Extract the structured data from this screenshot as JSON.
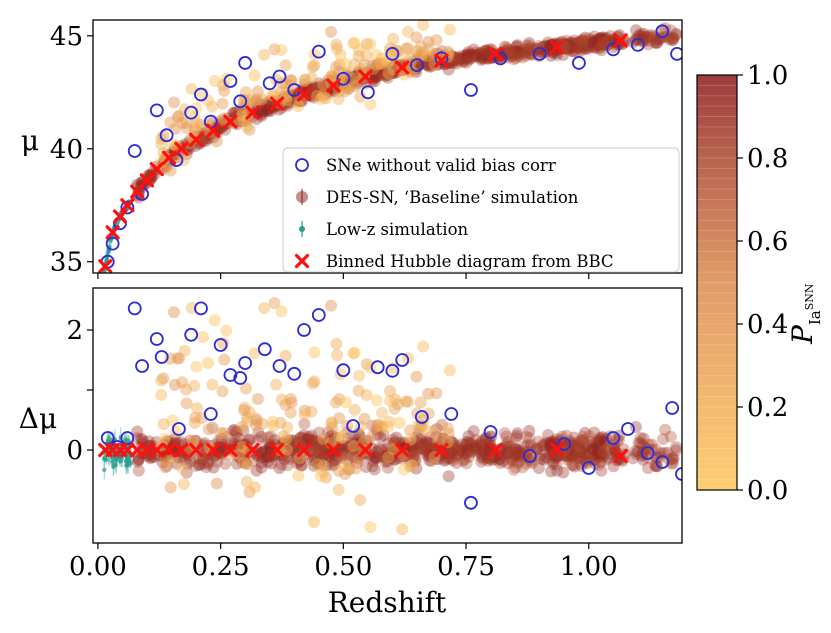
{
  "chart_data": [
    {
      "id": "top",
      "type": "scatter",
      "ylabel": "μ",
      "ylim": [
        34.5,
        45.7
      ],
      "xlim": [
        -0.01,
        1.19
      ],
      "yticks": [
        35,
        40,
        45
      ],
      "legend_position": "lower-right",
      "legend": [
        {
          "key": "no_bias",
          "label": "SNe without valid bias corr"
        },
        {
          "key": "des",
          "label": "DES-SN, ‘Baseline’ simulation"
        },
        {
          "key": "lowz",
          "label": "Low-z simulation"
        },
        {
          "key": "binned",
          "label": "Binned Hubble diagram from BBC"
        }
      ],
      "series": [
        {
          "name": "Binned Hubble diagram from BBC",
          "x": [
            0.015,
            0.03,
            0.045,
            0.06,
            0.08,
            0.1,
            0.12,
            0.145,
            0.17,
            0.2,
            0.235,
            0.27,
            0.315,
            0.365,
            0.42,
            0.48,
            0.545,
            0.62,
            0.7,
            0.81,
            0.935,
            1.065
          ],
          "y": [
            34.8,
            36.3,
            37.0,
            37.5,
            38.1,
            38.6,
            39.1,
            39.6,
            40.0,
            40.4,
            40.8,
            41.2,
            41.6,
            42.0,
            42.4,
            42.8,
            43.2,
            43.6,
            43.9,
            44.2,
            44.5,
            44.8
          ]
        },
        {
          "name": "SNe without valid bias corr",
          "x": [
            0.02,
            0.03,
            0.045,
            0.06,
            0.075,
            0.09,
            0.12,
            0.14,
            0.16,
            0.19,
            0.21,
            0.23,
            0.27,
            0.29,
            0.3,
            0.35,
            0.37,
            0.4,
            0.45,
            0.5,
            0.55,
            0.6,
            0.65,
            0.7,
            0.76,
            0.82,
            0.9,
            0.98,
            1.05,
            1.1,
            1.15,
            1.18
          ],
          "y": [
            35.0,
            35.8,
            36.7,
            37.4,
            39.9,
            38.0,
            41.7,
            40.6,
            39.5,
            41.6,
            42.4,
            41.2,
            43.0,
            42.1,
            43.8,
            42.9,
            43.2,
            42.6,
            44.3,
            43.1,
            42.5,
            44.2,
            43.7,
            44.0,
            42.6,
            44.0,
            44.2,
            43.8,
            44.4,
            44.6,
            45.2,
            44.2
          ]
        }
      ]
    },
    {
      "id": "bottom",
      "type": "scatter",
      "xlabel": "Redshift",
      "ylabel": "Δμ",
      "ylim": [
        -1.55,
        2.7
      ],
      "xlim": [
        -0.01,
        1.19
      ],
      "xticks": [
        0.0,
        0.25,
        0.5,
        0.75,
        1.0
      ],
      "xtick_labels": [
        "0.00",
        "0.25",
        "0.50",
        "0.75",
        "1.00"
      ],
      "yticks": [
        0,
        1,
        2
      ],
      "ytick_labels": [
        "0",
        "",
        "2"
      ],
      "series": [
        {
          "name": "Binned Hubble diagram from BBC",
          "x": [
            0.015,
            0.03,
            0.045,
            0.06,
            0.08,
            0.1,
            0.12,
            0.145,
            0.17,
            0.2,
            0.235,
            0.27,
            0.315,
            0.365,
            0.42,
            0.48,
            0.545,
            0.62,
            0.7,
            0.81,
            0.935,
            1.065
          ],
          "y": [
            0.0,
            0.0,
            0.0,
            0.0,
            0.0,
            0.0,
            0.0,
            0.0,
            0.0,
            0.0,
            0.0,
            0.0,
            0.0,
            0.0,
            0.0,
            0.0,
            0.0,
            0.0,
            0.0,
            0.0,
            0.01,
            -0.1
          ]
        },
        {
          "name": "SNe without valid bias corr",
          "x": [
            0.02,
            0.04,
            0.06,
            0.075,
            0.09,
            0.12,
            0.13,
            0.165,
            0.19,
            0.21,
            0.23,
            0.25,
            0.27,
            0.29,
            0.3,
            0.34,
            0.37,
            0.4,
            0.42,
            0.45,
            0.5,
            0.52,
            0.57,
            0.6,
            0.62,
            0.66,
            0.72,
            0.76,
            0.8,
            0.88,
            0.95,
            1.0,
            1.05,
            1.08,
            1.12,
            1.15,
            1.17,
            1.19
          ],
          "y": [
            0.2,
            0.05,
            0.2,
            2.36,
            1.4,
            1.85,
            1.55,
            0.35,
            1.92,
            2.36,
            0.6,
            1.75,
            1.25,
            1.2,
            1.45,
            1.68,
            1.4,
            1.27,
            2.0,
            2.25,
            1.33,
            0.4,
            1.38,
            1.32,
            1.5,
            0.55,
            0.6,
            -0.88,
            0.3,
            -0.1,
            0.1,
            -0.3,
            0.2,
            0.35,
            -0.05,
            -0.2,
            0.7,
            -0.4
          ]
        }
      ]
    },
    {
      "id": "colorbar",
      "type": "heatmap",
      "label": "P_Ia^SNN",
      "range": [
        0.0,
        1.0
      ],
      "ticks": [
        0.0,
        0.2,
        0.4,
        0.6,
        0.8,
        1.0
      ],
      "tick_labels": [
        "0.0",
        "0.2",
        "0.4",
        "0.6",
        "0.8",
        "1.0"
      ],
      "color_low": "#ffc65c",
      "color_mid": "#dc8a4e",
      "color_high": "#8b1a1a"
    }
  ],
  "colors": {
    "binned": "#ff1010",
    "no_bias": "#2b2bd9",
    "des": "#8b1a1a",
    "lowz": "#2a9d8f",
    "cb_low": "#ffc65c",
    "cb_high": "#8b1a1a"
  },
  "text": {
    "colorbar_label_main": "P",
    "colorbar_label_sub1": "Ia",
    "colorbar_label_sub2": "SNN",
    "top_ylabel": "μ",
    "bottom_ylabel": "Δμ",
    "xlabel": "Redshift"
  }
}
